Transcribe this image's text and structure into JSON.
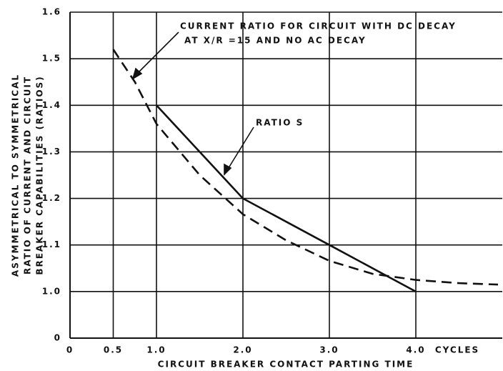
{
  "chart_data": {
    "type": "line",
    "xlabel": "CIRCUIT BREAKER CONTACT PARTING TIME",
    "ylabel": [
      "ASYMMETRICAL TO SYMMETRICAL",
      "RATIO OF CURRENT AND CIRCUIT",
      "BREAKER CAPABILITIES (RATIOS)"
    ],
    "xunit": "CYCLES",
    "xlim": [
      0,
      5
    ],
    "xticks": [
      0,
      0.5,
      {
        "value": 1,
        "label": "1.0"
      },
      {
        "value": 2,
        "label": "2.0"
      },
      {
        "value": 3,
        "label": "3.0"
      },
      {
        "value": 4,
        "label": "4.0"
      }
    ],
    "ylim": [
      0,
      1.6
    ],
    "ybreak": [
      0,
      0.9
    ],
    "yticks": [
      0,
      {
        "value": 1,
        "label": "1.0"
      },
      1.1,
      1.2,
      1.3,
      1.4,
      1.5,
      1.6
    ],
    "grid": true,
    "series": [
      {
        "name": "RATIO S",
        "color": "#111111",
        "dash": "solid",
        "x": [
          1,
          2,
          3,
          4
        ],
        "values": [
          1.4,
          1.2,
          1.1,
          1.0
        ]
      },
      {
        "name": "CURRENT RATIO FOR CIRCUIT WITH DC DECAY",
        "color": "#111111",
        "dash": "dashed",
        "x": [
          0.5,
          0.75,
          1,
          1.5,
          2,
          2.5,
          3,
          3.5,
          4,
          4.5,
          4.95
        ],
        "values": [
          1.52,
          1.45,
          1.36,
          1.25,
          1.166,
          1.11,
          1.066,
          1.038,
          1.025,
          1.018,
          1.015
        ]
      }
    ],
    "annotations": [
      "AT X/R =15  AND NO AC DECAY"
    ]
  }
}
